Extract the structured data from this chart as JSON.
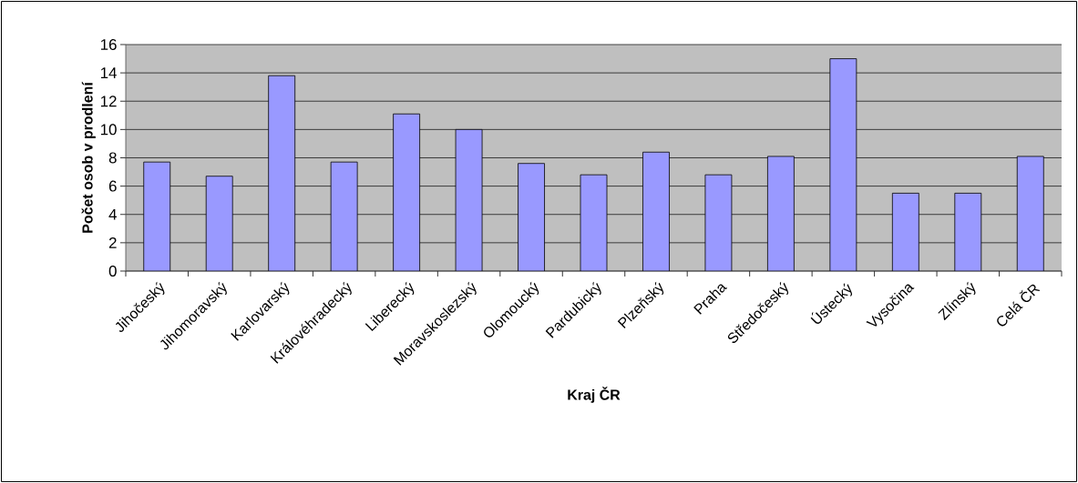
{
  "chart_data": {
    "type": "bar",
    "xlabel": "Kraj ČR",
    "ylabel": "Počet osob v prodlení",
    "categories": [
      "Jihočeský",
      "Jihomoravský",
      "Karlovarský",
      "Královéhradecký",
      "Liberecký",
      "Moravskoslezský",
      "Olomoucký",
      "Pardubický",
      "Plzeňský",
      "Praha",
      "Středočeský",
      "Ústecký",
      "Vysočina",
      "Zlínský",
      "Celá ČR"
    ],
    "values": [
      7.7,
      6.7,
      13.8,
      7.7,
      11.1,
      10.0,
      7.6,
      6.8,
      8.4,
      6.8,
      8.1,
      15.0,
      5.5,
      5.5,
      8.1
    ],
    "color": "#9999ff",
    "ylim": [
      0,
      16
    ],
    "yticks": [
      0,
      2,
      4,
      6,
      8,
      10,
      12,
      14,
      16
    ],
    "grid": "y"
  }
}
